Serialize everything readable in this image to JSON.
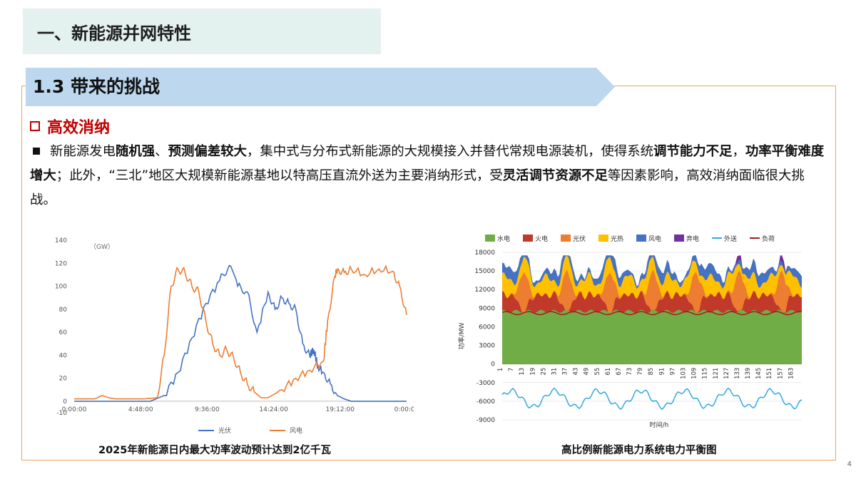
{
  "section_title": "一、新能源并网特性",
  "sub_title": "1.3 带来的挑战",
  "heading": "高效消纳",
  "paragraph": {
    "s1": "新能源发电",
    "b1": "随机强",
    "s2": "、",
    "b2": "预测偏差较大",
    "s3": "，集中式与分布式新能源的大规模接入并替代常规电源装机，使得系统",
    "b3": "调节能力不足",
    "s4": "，",
    "b4": "功率平衡难度增大",
    "s5": "；此外，“三北”地区大规模新能源基地以特高压直流外送为主要消纳形式，受",
    "b5": "灵活调节资源不足",
    "s6": "等因素影响，高效消纳面临很大挑战。"
  },
  "page_number": "4",
  "chart_data": [
    {
      "type": "line",
      "title": "2025年新能源日内最大功率波动预计达到2亿千瓦",
      "unit_label": "（GW）",
      "x_ticks": [
        "0:00:00",
        "4:48:00",
        "9:36:00",
        "14:24:00",
        "19:12:00",
        "0:00:00"
      ],
      "ylim": [
        -10,
        140
      ],
      "y_ticks": [
        -10,
        0,
        20,
        40,
        60,
        80,
        100,
        120,
        140
      ],
      "legend_position": "bottom",
      "colors": {
        "光伏": "#4472c4",
        "风电": "#ed7d31"
      },
      "series": [
        {
          "name": "光伏",
          "x_hours": [
            0,
            4,
            5.5,
            6.5,
            7.5,
            8.5,
            9.5,
            10.5,
            11.2,
            11.8,
            12.5,
            13.2,
            14,
            14.5,
            15,
            15.5,
            16,
            16.5,
            17,
            17.3,
            17.6,
            18,
            18.5,
            19,
            19.5,
            20,
            21,
            24
          ],
          "values": [
            0,
            0,
            0,
            5,
            25,
            55,
            85,
            105,
            118,
            100,
            95,
            60,
            95,
            80,
            90,
            85,
            80,
            50,
            40,
            45,
            30,
            25,
            15,
            5,
            2,
            0,
            0,
            0
          ]
        },
        {
          "name": "风电",
          "x_hours": [
            0,
            1.5,
            2,
            2.5,
            3,
            4,
            5,
            6,
            6.5,
            7,
            7.5,
            8,
            8.5,
            9,
            9.5,
            10,
            10.5,
            11,
            11.5,
            12,
            12.5,
            13,
            13.5,
            14,
            15,
            16,
            17,
            18,
            18.3,
            18.8,
            19,
            19.5,
            20,
            21,
            22,
            23,
            23.5,
            24
          ],
          "values": [
            2,
            2,
            5,
            3,
            2,
            2,
            2,
            3,
            40,
            100,
            115,
            112,
            100,
            95,
            70,
            50,
            40,
            45,
            38,
            25,
            15,
            8,
            3,
            3,
            10,
            20,
            27,
            35,
            70,
            108,
            115,
            112,
            115,
            110,
            115,
            113,
            100,
            75
          ]
        }
      ]
    },
    {
      "type": "area",
      "title": "高比例新能源电力系统电力平衡图",
      "xlabel": "时间/h",
      "ylabel": "功率/MW",
      "ylim": [
        -9000,
        18000
      ],
      "y_ticks": [
        -9000,
        -6000,
        -3000,
        0,
        3000,
        6000,
        9000,
        12000,
        15000,
        18000
      ],
      "x_ticks": [
        "1",
        "7",
        "13",
        "19",
        "25",
        "31",
        "37",
        "43",
        "49",
        "55",
        "61",
        "67",
        "73",
        "79",
        "85",
        "91",
        "97",
        "103",
        "109",
        "115",
        "121",
        "127",
        "133",
        "139",
        "145",
        "151",
        "157",
        "163"
      ],
      "legend_position": "top",
      "legend": [
        {
          "name": "水电",
          "color": "#70ad47"
        },
        {
          "name": "火电",
          "color": "#c0392b"
        },
        {
          "name": "光伏",
          "color": "#ed7d31"
        },
        {
          "name": "光热",
          "color": "#ffc000"
        },
        {
          "name": "风电",
          "color": "#4472c4"
        },
        {
          "name": "弃电",
          "color": "#7030a0"
        },
        {
          "name": "外送",
          "color": "#33a9e0"
        },
        {
          "name": "负荷",
          "color": "#a61c1c"
        }
      ],
      "hours_total": 168,
      "approx_levels": {
        "水电": 8500,
        "负荷": 8200,
        "外送": -5500,
        "总供给峰值": 16500
      }
    }
  ]
}
